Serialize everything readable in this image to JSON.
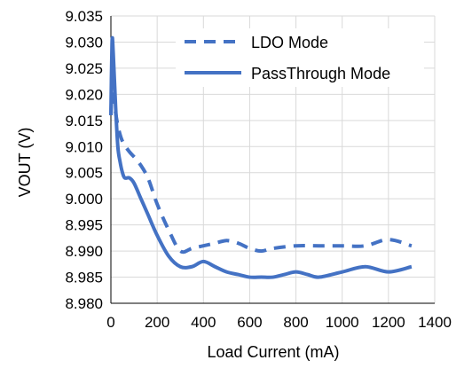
{
  "chart_data": {
    "type": "line",
    "xlabel": "Load Current (mA)",
    "ylabel": "VOUT (V)",
    "xlim": [
      0,
      1400
    ],
    "ylim": [
      8.98,
      9.035
    ],
    "x_ticks": [
      "0",
      "200",
      "400",
      "600",
      "800",
      "1000",
      "1200",
      "1400"
    ],
    "y_ticks": [
      "8.980",
      "8.985",
      "8.990",
      "8.995",
      "9.000",
      "9.005",
      "9.010",
      "9.015",
      "9.020",
      "9.025",
      "9.030",
      "9.035"
    ],
    "grid": true,
    "legend_position": "top-right",
    "series": [
      {
        "name": "LDO Mode",
        "style": "dashed",
        "color": "#4472c4",
        "x": [
          0,
          5,
          15,
          30,
          50,
          80,
          120,
          160,
          200,
          250,
          300,
          350,
          400,
          450,
          500,
          550,
          600,
          650,
          700,
          800,
          900,
          1000,
          1100,
          1200,
          1300
        ],
        "y": [
          9.016,
          9.02,
          9.018,
          9.014,
          9.011,
          9.009,
          9.007,
          9.004,
          8.999,
          8.994,
          8.99,
          8.9905,
          8.991,
          8.9915,
          8.992,
          8.9915,
          8.9905,
          8.99,
          8.9905,
          8.991,
          8.991,
          8.991,
          8.991,
          8.9922,
          8.991
        ]
      },
      {
        "name": "PassThrough Mode",
        "style": "solid",
        "color": "#4472c4",
        "x": [
          0,
          5,
          10,
          20,
          30,
          40,
          50,
          60,
          80,
          100,
          130,
          160,
          200,
          250,
          300,
          350,
          400,
          450,
          500,
          550,
          600,
          650,
          700,
          750,
          800,
          850,
          900,
          1000,
          1100,
          1200,
          1300
        ],
        "y": [
          9.016,
          9.03,
          9.028,
          9.018,
          9.01,
          9.007,
          9.005,
          9.004,
          9.004,
          9.003,
          9.0,
          8.997,
          8.993,
          8.989,
          8.987,
          8.987,
          8.988,
          8.987,
          8.986,
          8.9855,
          8.985,
          8.985,
          8.985,
          8.9855,
          8.986,
          8.9855,
          8.985,
          8.986,
          8.987,
          8.986,
          8.987
        ]
      }
    ]
  }
}
